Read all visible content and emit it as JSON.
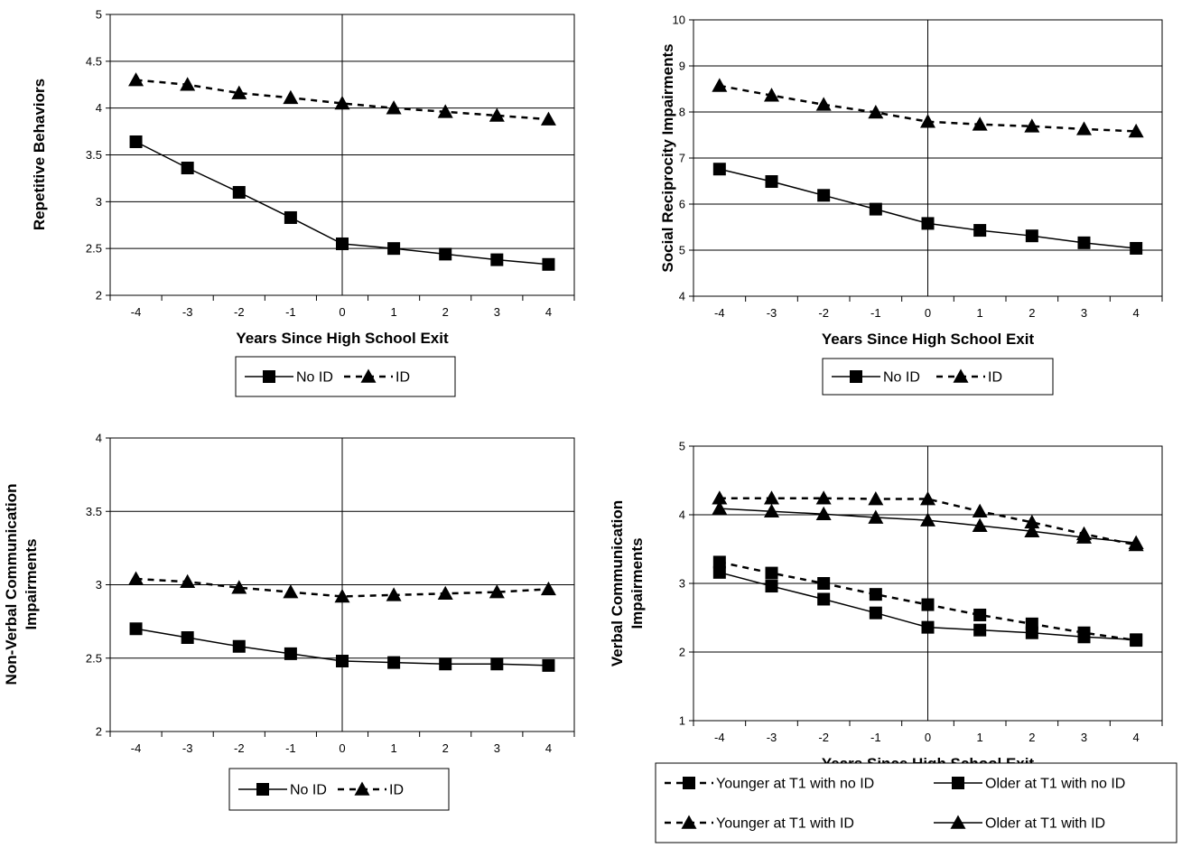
{
  "chart_data": [
    {
      "type": "line",
      "xlabel": "Years Since High School Exit",
      "ylabel": "Repetitive Behaviors",
      "ylim": [
        2,
        5
      ],
      "yticks": [
        "2",
        "2.5",
        "3",
        "3.5",
        "4",
        "4.5",
        "5"
      ],
      "x": [
        -4,
        -3,
        -2,
        -1,
        0,
        1,
        2,
        3,
        4
      ],
      "xticks": [
        "-4",
        "-3",
        "-2",
        "-1",
        "0",
        "1",
        "2",
        "3",
        "4"
      ],
      "grid": true,
      "legend": "bottom",
      "series": [
        {
          "name": "No ID",
          "values": [
            3.64,
            3.36,
            3.1,
            2.83,
            2.55,
            2.5,
            2.44,
            2.38,
            2.33
          ],
          "marker": "square",
          "dash": "solid"
        },
        {
          "name": "ID",
          "values": [
            4.3,
            4.25,
            4.16,
            4.11,
            4.05,
            4.0,
            3.96,
            3.92,
            3.88
          ],
          "marker": "triangle",
          "dash": "dashed"
        }
      ]
    },
    {
      "type": "line",
      "xlabel": "Years Since High School Exit",
      "ylabel": "Social Reciprocity Impairments",
      "ylim": [
        4,
        10
      ],
      "yticks": [
        "4",
        "5",
        "6",
        "7",
        "8",
        "9",
        "10"
      ],
      "x": [
        -4,
        -3,
        -2,
        -1,
        0,
        1,
        2,
        3,
        4
      ],
      "xticks": [
        "-4",
        "-3",
        "-2",
        "-1",
        "0",
        "1",
        "2",
        "3",
        "4"
      ],
      "grid": true,
      "legend": "bottom",
      "series": [
        {
          "name": "No ID",
          "values": [
            6.76,
            6.49,
            6.19,
            5.89,
            5.58,
            5.43,
            5.31,
            5.16,
            5.04
          ],
          "marker": "square",
          "dash": "solid"
        },
        {
          "name": "ID",
          "values": [
            8.57,
            8.36,
            8.16,
            7.99,
            7.79,
            7.73,
            7.69,
            7.63,
            7.58
          ],
          "marker": "triangle",
          "dash": "dashed"
        }
      ]
    },
    {
      "type": "line",
      "xlabel": "Years Since High School Exit",
      "ylabel": [
        "Non-Verbal Communication",
        "Impairments"
      ],
      "ylim": [
        2,
        4
      ],
      "yticks": [
        "2",
        "2.5",
        "3",
        "3.5",
        "4"
      ],
      "x": [
        -4,
        -3,
        -2,
        -1,
        0,
        1,
        2,
        3,
        4
      ],
      "xticks": [
        "-4",
        "-3",
        "-2",
        "-1",
        "0",
        "1",
        "2",
        "3",
        "4"
      ],
      "grid": true,
      "legend": "bottom",
      "series": [
        {
          "name": "No ID",
          "values": [
            2.7,
            2.64,
            2.58,
            2.53,
            2.48,
            2.47,
            2.46,
            2.46,
            2.45
          ],
          "marker": "square",
          "dash": "solid"
        },
        {
          "name": "ID",
          "values": [
            3.04,
            3.02,
            2.98,
            2.95,
            2.92,
            2.93,
            2.94,
            2.95,
            2.97
          ],
          "marker": "triangle",
          "dash": "dashed"
        }
      ]
    },
    {
      "type": "line",
      "xlabel": "Years Since High School Exit",
      "ylabel": [
        "Verbal Communication",
        "Impairments"
      ],
      "ylim": [
        1,
        5
      ],
      "yticks": [
        "1",
        "2",
        "3",
        "4",
        "5"
      ],
      "x": [
        -4,
        -3,
        -2,
        -1,
        0,
        1,
        2,
        3,
        4
      ],
      "xticks": [
        "-4",
        "-3",
        "-2",
        "-1",
        "0",
        "1",
        "2",
        "3",
        "4"
      ],
      "grid": true,
      "legend": "bottom",
      "series": [
        {
          "name": "Younger at T1 with no ID",
          "values": [
            3.31,
            3.15,
            3.0,
            2.84,
            2.69,
            2.54,
            2.41,
            2.28,
            2.17
          ],
          "marker": "square",
          "dash": "dashed"
        },
        {
          "name": "Older at T1 with no ID",
          "values": [
            3.16,
            2.96,
            2.77,
            2.57,
            2.36,
            2.32,
            2.28,
            2.22,
            2.18
          ],
          "marker": "square",
          "dash": "solid"
        },
        {
          "name": "Younger at T1 with ID",
          "values": [
            4.24,
            4.24,
            4.24,
            4.23,
            4.23,
            4.05,
            3.89,
            3.72,
            3.56
          ],
          "marker": "triangle",
          "dash": "dashed"
        },
        {
          "name": "Older at T1 with ID",
          "values": [
            4.09,
            4.05,
            4.01,
            3.96,
            3.92,
            3.84,
            3.76,
            3.67,
            3.59
          ],
          "marker": "triangle",
          "dash": "solid"
        }
      ]
    }
  ]
}
